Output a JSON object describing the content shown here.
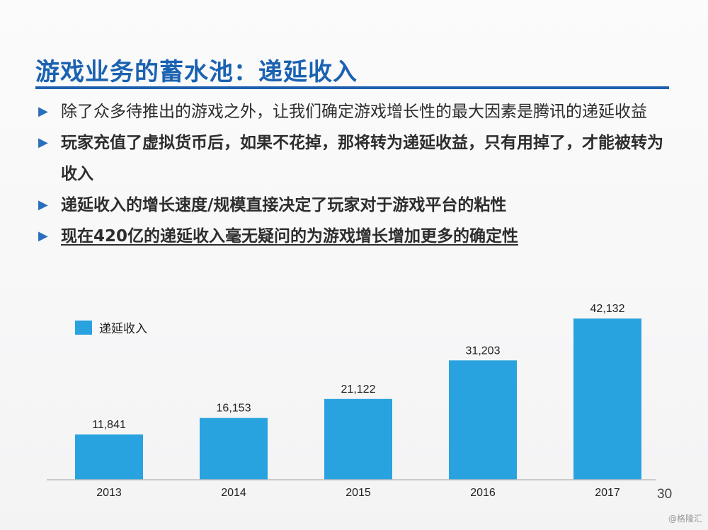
{
  "slide": {
    "title": "游戏业务的蓄水池：递延收入",
    "bullets": [
      {
        "text": "除了众多待推出的游戏之外，让我们确定游戏增长性的最大因素是腾讯的递延收益",
        "bold": false,
        "underline": false
      },
      {
        "text": "玩家充值了虚拟货币后，如果不花掉，那将转为递延收益，只有用掉了，才能被转为收入",
        "bold": true,
        "underline": false
      },
      {
        "text": "递延收入的增长速度/规模直接决定了玩家对于游戏平台的粘性",
        "bold": true,
        "underline": false
      },
      {
        "text": "现在420亿的递延收入毫无疑问的为游戏增长增加更多的确定性",
        "bold": true,
        "underline": true
      }
    ],
    "page_number": "30",
    "watermark": "@格隆汇",
    "bullet_glyph": "▶",
    "accent_color": "#1e5fae",
    "bar_color": "#29a3df"
  },
  "chart_data": {
    "type": "bar",
    "categories": [
      "2013",
      "2014",
      "2015",
      "2016",
      "2017"
    ],
    "series": [
      {
        "name": "递延收入",
        "values": [
          11841,
          16153,
          21122,
          31203,
          42132
        ]
      }
    ],
    "data_labels": [
      "11,841",
      "16,153",
      "21,122",
      "31,203",
      "42,132"
    ],
    "ylim": [
      0,
      45500
    ],
    "legend_position": "top-left",
    "grid": false
  }
}
